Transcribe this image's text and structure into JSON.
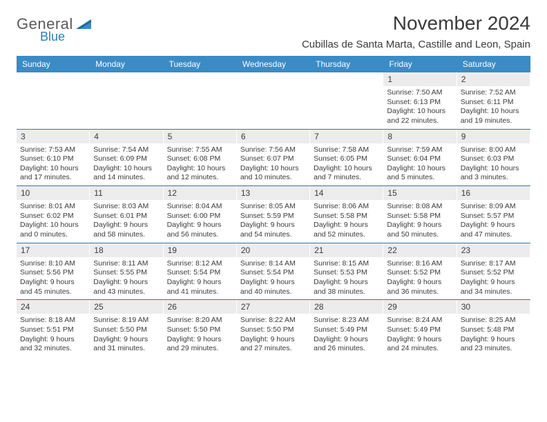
{
  "brand": {
    "line1": "General",
    "line2": "Blue"
  },
  "colors": {
    "header_bg": "#3b8bc6",
    "header_text": "#ffffff",
    "row_border": "#3b72a8",
    "daynum_bg": "#ececec",
    "body_text": "#3a3a3a",
    "logo_gray": "#5a5a5a",
    "logo_blue": "#2a7fbb"
  },
  "title": "November 2024",
  "location": "Cubillas de Santa Marta, Castille and Leon, Spain",
  "weekdays": [
    "Sunday",
    "Monday",
    "Tuesday",
    "Wednesday",
    "Thursday",
    "Friday",
    "Saturday"
  ],
  "weeks": [
    [
      {
        "n": "",
        "sr": "",
        "ss": "",
        "dl1": "",
        "dl2": ""
      },
      {
        "n": "",
        "sr": "",
        "ss": "",
        "dl1": "",
        "dl2": ""
      },
      {
        "n": "",
        "sr": "",
        "ss": "",
        "dl1": "",
        "dl2": ""
      },
      {
        "n": "",
        "sr": "",
        "ss": "",
        "dl1": "",
        "dl2": ""
      },
      {
        "n": "",
        "sr": "",
        "ss": "",
        "dl1": "",
        "dl2": ""
      },
      {
        "n": "1",
        "sr": "Sunrise: 7:50 AM",
        "ss": "Sunset: 6:13 PM",
        "dl1": "Daylight: 10 hours",
        "dl2": "and 22 minutes."
      },
      {
        "n": "2",
        "sr": "Sunrise: 7:52 AM",
        "ss": "Sunset: 6:11 PM",
        "dl1": "Daylight: 10 hours",
        "dl2": "and 19 minutes."
      }
    ],
    [
      {
        "n": "3",
        "sr": "Sunrise: 7:53 AM",
        "ss": "Sunset: 6:10 PM",
        "dl1": "Daylight: 10 hours",
        "dl2": "and 17 minutes."
      },
      {
        "n": "4",
        "sr": "Sunrise: 7:54 AM",
        "ss": "Sunset: 6:09 PM",
        "dl1": "Daylight: 10 hours",
        "dl2": "and 14 minutes."
      },
      {
        "n": "5",
        "sr": "Sunrise: 7:55 AM",
        "ss": "Sunset: 6:08 PM",
        "dl1": "Daylight: 10 hours",
        "dl2": "and 12 minutes."
      },
      {
        "n": "6",
        "sr": "Sunrise: 7:56 AM",
        "ss": "Sunset: 6:07 PM",
        "dl1": "Daylight: 10 hours",
        "dl2": "and 10 minutes."
      },
      {
        "n": "7",
        "sr": "Sunrise: 7:58 AM",
        "ss": "Sunset: 6:05 PM",
        "dl1": "Daylight: 10 hours",
        "dl2": "and 7 minutes."
      },
      {
        "n": "8",
        "sr": "Sunrise: 7:59 AM",
        "ss": "Sunset: 6:04 PM",
        "dl1": "Daylight: 10 hours",
        "dl2": "and 5 minutes."
      },
      {
        "n": "9",
        "sr": "Sunrise: 8:00 AM",
        "ss": "Sunset: 6:03 PM",
        "dl1": "Daylight: 10 hours",
        "dl2": "and 3 minutes."
      }
    ],
    [
      {
        "n": "10",
        "sr": "Sunrise: 8:01 AM",
        "ss": "Sunset: 6:02 PM",
        "dl1": "Daylight: 10 hours",
        "dl2": "and 0 minutes."
      },
      {
        "n": "11",
        "sr": "Sunrise: 8:03 AM",
        "ss": "Sunset: 6:01 PM",
        "dl1": "Daylight: 9 hours",
        "dl2": "and 58 minutes."
      },
      {
        "n": "12",
        "sr": "Sunrise: 8:04 AM",
        "ss": "Sunset: 6:00 PM",
        "dl1": "Daylight: 9 hours",
        "dl2": "and 56 minutes."
      },
      {
        "n": "13",
        "sr": "Sunrise: 8:05 AM",
        "ss": "Sunset: 5:59 PM",
        "dl1": "Daylight: 9 hours",
        "dl2": "and 54 minutes."
      },
      {
        "n": "14",
        "sr": "Sunrise: 8:06 AM",
        "ss": "Sunset: 5:58 PM",
        "dl1": "Daylight: 9 hours",
        "dl2": "and 52 minutes."
      },
      {
        "n": "15",
        "sr": "Sunrise: 8:08 AM",
        "ss": "Sunset: 5:58 PM",
        "dl1": "Daylight: 9 hours",
        "dl2": "and 50 minutes."
      },
      {
        "n": "16",
        "sr": "Sunrise: 8:09 AM",
        "ss": "Sunset: 5:57 PM",
        "dl1": "Daylight: 9 hours",
        "dl2": "and 47 minutes."
      }
    ],
    [
      {
        "n": "17",
        "sr": "Sunrise: 8:10 AM",
        "ss": "Sunset: 5:56 PM",
        "dl1": "Daylight: 9 hours",
        "dl2": "and 45 minutes."
      },
      {
        "n": "18",
        "sr": "Sunrise: 8:11 AM",
        "ss": "Sunset: 5:55 PM",
        "dl1": "Daylight: 9 hours",
        "dl2": "and 43 minutes."
      },
      {
        "n": "19",
        "sr": "Sunrise: 8:12 AM",
        "ss": "Sunset: 5:54 PM",
        "dl1": "Daylight: 9 hours",
        "dl2": "and 41 minutes."
      },
      {
        "n": "20",
        "sr": "Sunrise: 8:14 AM",
        "ss": "Sunset: 5:54 PM",
        "dl1": "Daylight: 9 hours",
        "dl2": "and 40 minutes."
      },
      {
        "n": "21",
        "sr": "Sunrise: 8:15 AM",
        "ss": "Sunset: 5:53 PM",
        "dl1": "Daylight: 9 hours",
        "dl2": "and 38 minutes."
      },
      {
        "n": "22",
        "sr": "Sunrise: 8:16 AM",
        "ss": "Sunset: 5:52 PM",
        "dl1": "Daylight: 9 hours",
        "dl2": "and 36 minutes."
      },
      {
        "n": "23",
        "sr": "Sunrise: 8:17 AM",
        "ss": "Sunset: 5:52 PM",
        "dl1": "Daylight: 9 hours",
        "dl2": "and 34 minutes."
      }
    ],
    [
      {
        "n": "24",
        "sr": "Sunrise: 8:18 AM",
        "ss": "Sunset: 5:51 PM",
        "dl1": "Daylight: 9 hours",
        "dl2": "and 32 minutes."
      },
      {
        "n": "25",
        "sr": "Sunrise: 8:19 AM",
        "ss": "Sunset: 5:50 PM",
        "dl1": "Daylight: 9 hours",
        "dl2": "and 31 minutes."
      },
      {
        "n": "26",
        "sr": "Sunrise: 8:20 AM",
        "ss": "Sunset: 5:50 PM",
        "dl1": "Daylight: 9 hours",
        "dl2": "and 29 minutes."
      },
      {
        "n": "27",
        "sr": "Sunrise: 8:22 AM",
        "ss": "Sunset: 5:50 PM",
        "dl1": "Daylight: 9 hours",
        "dl2": "and 27 minutes."
      },
      {
        "n": "28",
        "sr": "Sunrise: 8:23 AM",
        "ss": "Sunset: 5:49 PM",
        "dl1": "Daylight: 9 hours",
        "dl2": "and 26 minutes."
      },
      {
        "n": "29",
        "sr": "Sunrise: 8:24 AM",
        "ss": "Sunset: 5:49 PM",
        "dl1": "Daylight: 9 hours",
        "dl2": "and 24 minutes."
      },
      {
        "n": "30",
        "sr": "Sunrise: 8:25 AM",
        "ss": "Sunset: 5:48 PM",
        "dl1": "Daylight: 9 hours",
        "dl2": "and 23 minutes."
      }
    ]
  ]
}
